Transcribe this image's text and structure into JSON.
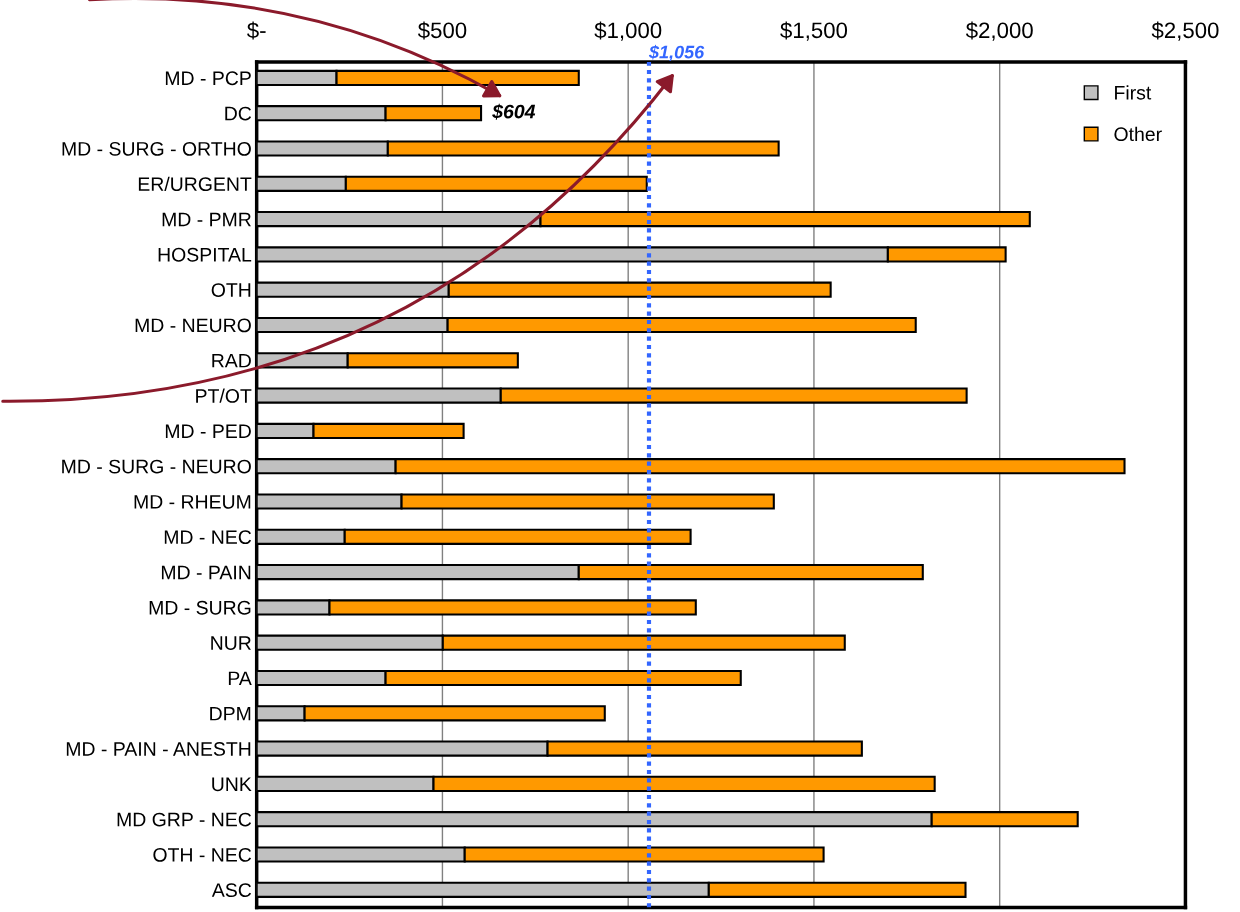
{
  "chart_data": {
    "type": "bar",
    "orientation": "horizontal",
    "stacked": true,
    "categories": [
      "MD - PCP",
      "DC",
      "MD - SURG - ORTHO",
      "ER/URGENT",
      "MD - PMR",
      "HOSPITAL",
      "OTH",
      "MD - NEURO",
      "RAD",
      "PT/OT",
      "MD - PED",
      "MD - SURG - NEURO",
      "MD - RHEUM",
      "MD - NEC",
      "MD - PAIN",
      "MD - SURG",
      "NUR",
      "PA",
      "DPM",
      "MD - PAIN - ANESTH",
      "UNK",
      "MD GRP - NEC",
      "OTH - NEC",
      "ASC"
    ],
    "series": [
      {
        "name": "First",
        "color": "#c0c0c0",
        "values": [
          215,
          347,
          353,
          240,
          764,
          1699,
          517,
          514,
          245,
          657,
          153,
          374,
          390,
          237,
          867,
          196,
          501,
          347,
          129,
          783,
          476,
          1817,
          560,
          1217
        ]
      },
      {
        "name": "Other",
        "color": "#ff9900",
        "values": [
          652,
          257,
          1052,
          810,
          1317,
          317,
          1028,
          1260,
          458,
          1254,
          404,
          1962,
          1002,
          931,
          926,
          986,
          1082,
          956,
          808,
          846,
          1349,
          393,
          966,
          691
        ]
      }
    ],
    "xlim": [
      0,
      2500
    ],
    "xticks": [
      {
        "value": 0,
        "label": "$-"
      },
      {
        "value": 500,
        "label": "$500"
      },
      {
        "value": 1000,
        "label": "$1,000"
      },
      {
        "value": 1500,
        "label": "$1,500"
      },
      {
        "value": 2000,
        "label": "$2,000"
      },
      {
        "value": 2500,
        "label": "$2,500"
      }
    ],
    "ref_lines": [
      {
        "axis": "x",
        "value": 1056,
        "label": "$1,056",
        "color": "#3366ff",
        "line_style": "dotted"
      }
    ],
    "annotations": [
      {
        "text": "$604",
        "x": 604,
        "y": "DC"
      }
    ],
    "grid": "x",
    "legend": "top right"
  }
}
